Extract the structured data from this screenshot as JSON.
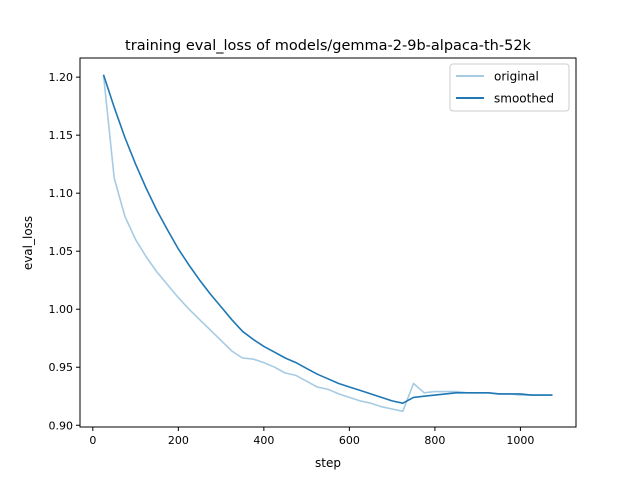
{
  "chart_data": {
    "type": "line",
    "title": "training eval_loss of models/gemma-2-9b-alpaca-th-52k",
    "xlabel": "step",
    "ylabel": "eval_loss",
    "xlim": [
      -30,
      1130
    ],
    "ylim": [
      0.8985,
      1.2165
    ],
    "xticks": [
      0,
      200,
      400,
      600,
      800,
      1000
    ],
    "yticks": [
      0.9,
      0.95,
      1.0,
      1.05,
      1.1,
      1.15,
      1.2
    ],
    "ytick_labels": [
      "0.90",
      "0.95",
      "1.00",
      "1.05",
      "1.10",
      "1.15",
      "1.20"
    ],
    "grid": false,
    "legend": "top-right",
    "x": [
      25,
      50,
      75,
      100,
      125,
      150,
      175,
      200,
      225,
      250,
      275,
      300,
      325,
      350,
      375,
      400,
      425,
      450,
      475,
      500,
      525,
      550,
      575,
      600,
      625,
      650,
      675,
      700,
      725,
      750,
      775,
      800,
      825,
      850,
      875,
      900,
      925,
      950,
      975,
      1000,
      1025,
      1050,
      1075
    ],
    "series": [
      {
        "name": "original",
        "color": "#a6cbe3",
        "values": [
          1.202,
          1.113,
          1.08,
          1.06,
          1.045,
          1.032,
          1.021,
          1.01,
          1.0,
          0.991,
          0.982,
          0.973,
          0.964,
          0.958,
          0.957,
          0.954,
          0.95,
          0.945,
          0.943,
          0.938,
          0.933,
          0.931,
          0.927,
          0.924,
          0.921,
          0.919,
          0.916,
          0.914,
          0.912,
          0.936,
          0.928,
          0.929,
          0.929,
          0.929,
          0.928,
          0.928,
          0.928,
          0.927,
          0.927,
          0.926,
          0.926,
          0.926,
          0.926
        ]
      },
      {
        "name": "smoothed",
        "color": "#1f77b4",
        "values": [
          1.202,
          1.174,
          1.148,
          1.125,
          1.104,
          1.085,
          1.068,
          1.052,
          1.038,
          1.025,
          1.013,
          1.002,
          0.991,
          0.981,
          0.974,
          0.968,
          0.963,
          0.958,
          0.954,
          0.949,
          0.944,
          0.94,
          0.936,
          0.933,
          0.93,
          0.927,
          0.924,
          0.921,
          0.919,
          0.924,
          0.925,
          0.926,
          0.927,
          0.928,
          0.928,
          0.928,
          0.928,
          0.927,
          0.927,
          0.927,
          0.926,
          0.926,
          0.926
        ]
      }
    ]
  }
}
